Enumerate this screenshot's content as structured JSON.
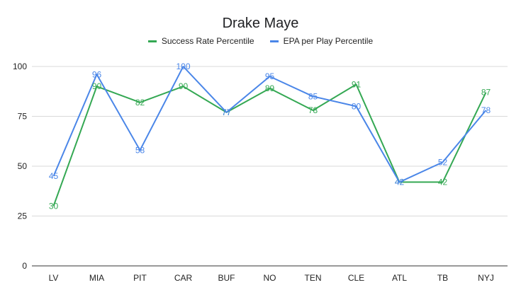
{
  "chart_data": {
    "type": "line",
    "title": "Drake Maye",
    "categories": [
      "LV",
      "MIA",
      "PIT",
      "CAR",
      "BUF",
      "NO",
      "TEN",
      "CLE",
      "ATL",
      "TB",
      "NYJ"
    ],
    "series": [
      {
        "name": "Success Rate Percentile",
        "color": "#34a853",
        "values": [
          30,
          90,
          82,
          90,
          77,
          89,
          78,
          91,
          42,
          42,
          87
        ]
      },
      {
        "name": "EPA per Play Percentile",
        "color": "#4a86e8",
        "values": [
          45,
          96,
          58,
          100,
          77,
          95,
          85,
          80,
          42,
          52,
          78
        ]
      }
    ],
    "ylim": [
      0,
      100
    ],
    "yticks": [
      0,
      25,
      50,
      75,
      100
    ],
    "grid": true,
    "legend_position": "top",
    "xlabel": "",
    "ylabel": ""
  }
}
